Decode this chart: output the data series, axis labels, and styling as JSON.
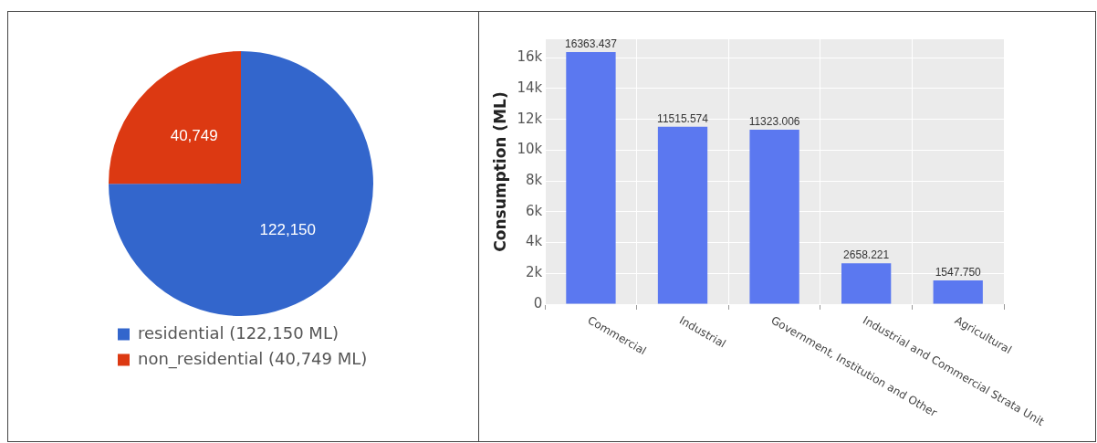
{
  "chart_data": [
    {
      "type": "pie",
      "categories": [
        "residential (122,150 ML)",
        "non_residential (40,749 ML)"
      ],
      "values": [
        122150,
        40749
      ],
      "colors": [
        "#3366cc",
        "#dc3912"
      ],
      "value_labels": [
        "122,150",
        "40,749"
      ],
      "legend": "bottom"
    },
    {
      "type": "bar",
      "categories": [
        "Commercial",
        "Industrial",
        "Government, Institution and Other",
        "Industrial and Commercial Strata Unit",
        "Agricultural"
      ],
      "values": [
        16363.437,
        11515.574,
        11323.006,
        2658.221,
        1547.75
      ],
      "value_labels": [
        "16363.437",
        "11515.574",
        "11323.006",
        "2658.221",
        "1547.750"
      ],
      "color": "#5b78f0",
      "ylabel": "Consumption (ML)",
      "ylim": [
        0,
        17200
      ],
      "yticks": [
        0,
        {
          "value": 2000,
          "label": "2k"
        },
        {
          "value": 4000,
          "label": "4k"
        },
        {
          "value": 6000,
          "label": "6k"
        },
        {
          "value": 8000,
          "label": "8k"
        },
        {
          "value": 10000,
          "label": "10k"
        },
        {
          "value": 12000,
          "label": "12k"
        },
        {
          "value": 14000,
          "label": "14k"
        },
        {
          "value": 16000,
          "label": "16k"
        }
      ],
      "grid": true
    }
  ]
}
